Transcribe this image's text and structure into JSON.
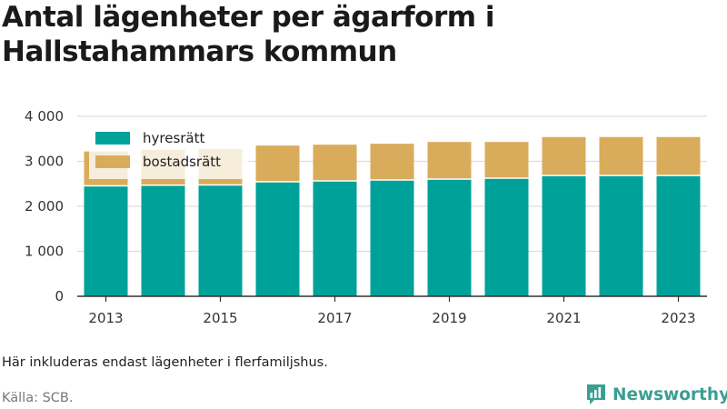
{
  "title_lines": [
    "Antal lägenheter per ägarform i",
    "Hallstahammars kommun"
  ],
  "note": "Här inkluderas endast lägenheter i flerfamiljshus.",
  "source": "Källa: SCB.",
  "brand": {
    "name": "Newsworthy",
    "icon": "newsworthy-logo-icon",
    "color": "#3b9e93"
  },
  "colors": {
    "hyresratt": "#00a199",
    "bostadsratt": "#d9ac5b",
    "grid": "#dddddd",
    "axis": "#333333"
  },
  "chart_data": {
    "type": "bar",
    "stacked": true,
    "categories": [
      "2013",
      "2014",
      "2015",
      "2016",
      "2017",
      "2018",
      "2019",
      "2020",
      "2021",
      "2022",
      "2023"
    ],
    "x_tick_labels": [
      "2013",
      "2015",
      "2017",
      "2019",
      "2021",
      "2023"
    ],
    "y_tick_labels": [
      "0",
      "1 000",
      "2 000",
      "3 000",
      "4 000"
    ],
    "y_ticks": [
      0,
      1000,
      2000,
      3000,
      4000
    ],
    "ylim": [
      0,
      4000
    ],
    "grid": true,
    "legend_position": "top-left",
    "series": [
      {
        "name": "hyresrätt",
        "color": "#00a199",
        "values": [
          2440,
          2455,
          2460,
          2530,
          2550,
          2570,
          2590,
          2610,
          2670,
          2670,
          2670
        ]
      },
      {
        "name": "bostadsrätt",
        "color": "#d9ac5b",
        "values": [
          780,
          800,
          815,
          820,
          820,
          820,
          840,
          820,
          870,
          870,
          870
        ]
      }
    ]
  }
}
